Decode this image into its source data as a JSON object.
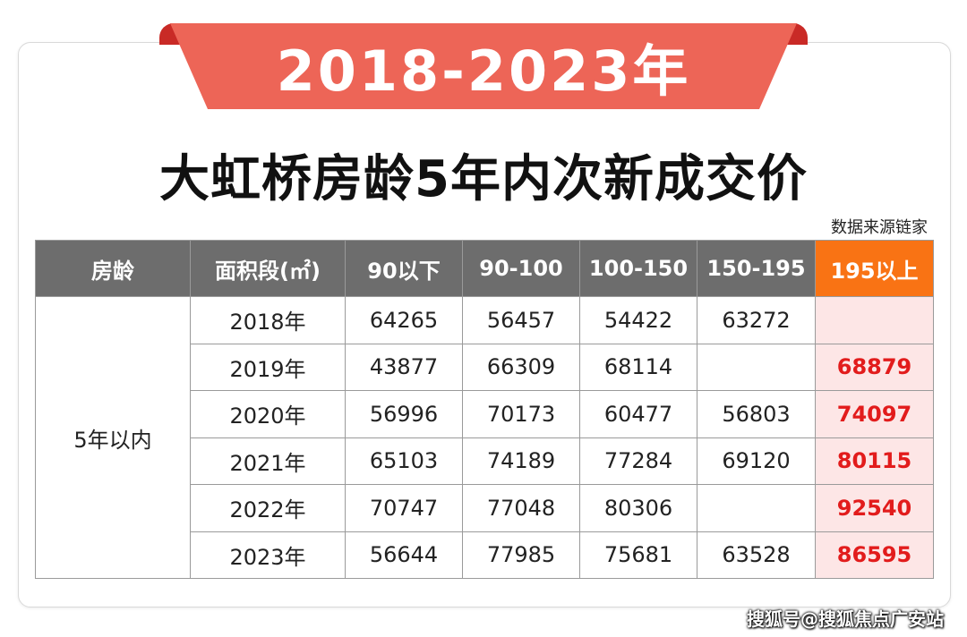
{
  "banner": "2018-2023年",
  "title": "大虹桥房龄5年内次新成交价",
  "source": "数据来源链家",
  "table": {
    "headers": [
      "房龄",
      "面积段(㎡)",
      "90以下",
      "90-100",
      "100-150",
      "150-195",
      "195以上"
    ],
    "group_label": "5年以内",
    "rows": [
      {
        "year": "2018年",
        "cells": [
          "64265",
          "56457",
          "54422",
          "63272",
          ""
        ]
      },
      {
        "year": "2019年",
        "cells": [
          "43877",
          "66309",
          "68114",
          "",
          "68879"
        ]
      },
      {
        "year": "2020年",
        "cells": [
          "56996",
          "70173",
          "60477",
          "56803",
          "74097"
        ]
      },
      {
        "year": "2021年",
        "cells": [
          "65103",
          "74189",
          "77284",
          "69120",
          "80115"
        ]
      },
      {
        "year": "2022年",
        "cells": [
          "70747",
          "77048",
          "80306",
          "",
          "92540"
        ]
      },
      {
        "year": "2023年",
        "cells": [
          "56644",
          "77985",
          "75681",
          "63528",
          "86595"
        ]
      }
    ]
  },
  "watermark": "搜狐号@搜狐焦点广安站",
  "colors": {
    "banner": "#ed6557",
    "header": "#6d6d6d",
    "highlight_header": "#f97314",
    "highlight_cell_bg": "#fde6e6",
    "highlight_text": "#e21c1c"
  }
}
